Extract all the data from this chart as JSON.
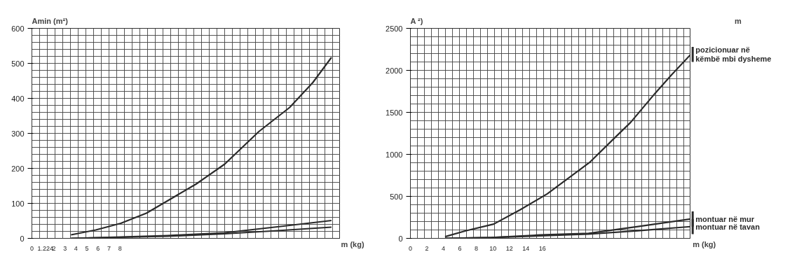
{
  "chart_data": [
    {
      "type": "line",
      "ylabel": "Amin (m²)",
      "xlabel": "m (kg)",
      "xlim": [
        0,
        28
      ],
      "xticks": [
        0,
        1.224,
        2,
        3,
        4,
        5,
        6,
        7,
        8
      ],
      "ylim": [
        0,
        600
      ],
      "yticks": [
        0,
        100,
        200,
        300,
        400,
        500,
        600
      ],
      "grid": true,
      "series": [
        {
          "color": "#2b2b2b",
          "x": [
            3.55,
            5.8,
            8.07,
            10.4,
            12.3,
            14.9,
            17.5,
            20.6,
            23.4,
            25.5,
            27.2
          ],
          "values": [
            10,
            24,
            43,
            72,
            107,
            155,
            212,
            305,
            374,
            445,
            517
          ]
        },
        {
          "color": "#2b2b2b",
          "x": [
            3.55,
            8.07,
            12.3,
            17.5,
            22.3,
            27.2
          ],
          "values": [
            0,
            4,
            8,
            16,
            33,
            51
          ]
        },
        {
          "color": "#2b2b2b",
          "x": [
            3.55,
            8.07,
            12.3,
            17.5,
            22.3,
            27.2
          ],
          "values": [
            0,
            3,
            6,
            13,
            22,
            32
          ]
        }
      ]
    },
    {
      "type": "line",
      "ylabel": "A ²)",
      "xlabel": "m (kg)",
      "annotations": [
        "m"
      ],
      "legend": "right",
      "xlim": [
        0,
        34
      ],
      "xticks": [
        0,
        2,
        4,
        6,
        8,
        10,
        12,
        14,
        16
      ],
      "ylim": [
        0,
        2500
      ],
      "yticks": [
        0,
        500,
        1000,
        1500,
        2000,
        2500
      ],
      "grid": true,
      "series": [
        {
          "name": "pozicionuar  në\nkëmbë mbi dysheme",
          "color": "#2b2b2b",
          "x": [
            4.2,
            6.7,
            10.1,
            13.3,
            16.6,
            19.2,
            21.8,
            24.6,
            26.7,
            29.7,
            31.7,
            34.0
          ],
          "values": [
            20,
            90,
            170,
            340,
            530,
            720,
            910,
            1180,
            1380,
            1730,
            1950,
            2190
          ]
        },
        {
          "name": "montuar në mur",
          "color": "#2b2b2b",
          "x": [
            4.2,
            9.8,
            15.7,
            21.6,
            27.6,
            34.0
          ],
          "values": [
            0,
            10,
            40,
            60,
            140,
            230
          ]
        },
        {
          "name": "montuar në tavan",
          "color": "#2b2b2b",
          "x": [
            4.2,
            9.8,
            15.7,
            21.6,
            27.6,
            34.0
          ],
          "values": [
            0,
            10,
            30,
            50,
            90,
            140
          ]
        }
      ]
    }
  ]
}
